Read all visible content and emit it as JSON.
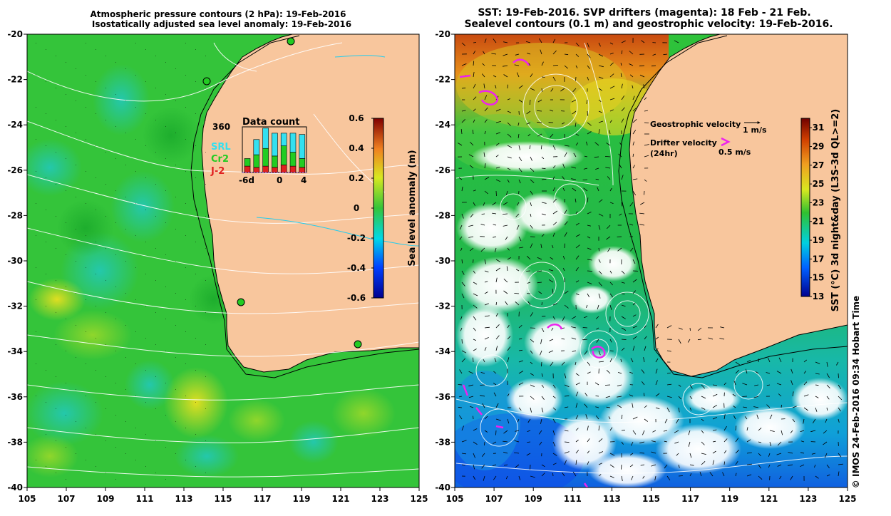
{
  "left_panel": {
    "title_line1": "Atmospheric pressure contours (2 hPa): 19-Feb-2016",
    "title_line2": "Isostatically adjusted sea level anomaly: 19-Feb-2016",
    "y_ticks": [
      "-20",
      "-22",
      "-24",
      "-26",
      "-28",
      "-30",
      "-32",
      "-34",
      "-36",
      "-38",
      "-40"
    ],
    "x_ticks": [
      "105",
      "107",
      "109",
      "111",
      "113",
      "115",
      "117",
      "119",
      "121",
      "123",
      "125"
    ],
    "colorbar": {
      "label": "Sea level anomaly (m)",
      "ticks": [
        "0.6",
        "0.4",
        "0.2",
        "0",
        "-0.2",
        "-0.4",
        "-0.6"
      ],
      "range": [
        -0.6,
        0.6
      ]
    },
    "data_count": {
      "title": "Data count",
      "max_label": "360",
      "x_labels": [
        "-6d",
        "0",
        "4"
      ],
      "legend": [
        {
          "name": "SRL",
          "color": "#33e0f0"
        },
        {
          "name": "Cr2",
          "color": "#22cc22"
        },
        {
          "name": "J-2",
          "color": "#e02020"
        }
      ],
      "bars": [
        {
          "J2": 50,
          "Cr2": 60,
          "SRL": 0
        },
        {
          "J2": 40,
          "Cr2": 100,
          "SRL": 120
        },
        {
          "J2": 50,
          "Cr2": 140,
          "SRL": 160
        },
        {
          "J2": 40,
          "Cr2": 90,
          "SRL": 180
        },
        {
          "J2": 60,
          "Cr2": 150,
          "SRL": 100
        },
        {
          "J2": 50,
          "Cr2": 110,
          "SRL": 150
        },
        {
          "J2": 40,
          "Cr2": 70,
          "SRL": 190
        }
      ]
    }
  },
  "right_panel": {
    "title_line1": "SST: 19-Feb-2016. SVP drifters (magenta): 18 Feb - 21 Feb.",
    "title_line2": "Sealevel contours (0.1 m) and geostrophic velocity: 19-Feb-2016.",
    "y_ticks": [
      "-20",
      "-22",
      "-24",
      "-26",
      "-28",
      "-30",
      "-32",
      "-34",
      "-36",
      "-38",
      "-40"
    ],
    "x_ticks": [
      "105",
      "107",
      "109",
      "111",
      "113",
      "115",
      "117",
      "119",
      "121",
      "123",
      "125"
    ],
    "legend": {
      "geo_label": "Geostrophic velocity",
      "geo_scale": "1 m/s",
      "drifter_label": "Drifter velocity",
      "drifter_sub": "(24hr)",
      "drifter_scale": "0.5 m/s"
    },
    "colorbar": {
      "label": "SST (°C) 3d night&day (L3S-3d QL>=2)",
      "ticks": [
        "31",
        "29",
        "27",
        "25",
        "23",
        "21",
        "19",
        "17",
        "15",
        "13"
      ],
      "range": [
        13,
        32
      ]
    }
  },
  "footer": "© IMOS 24-Feb-2016 09:34 Hobart Time",
  "colors": {
    "land": "#f8c69d",
    "ocean_green": "#34c43a",
    "coast": "#000000",
    "drifter": "#ee22ee"
  }
}
